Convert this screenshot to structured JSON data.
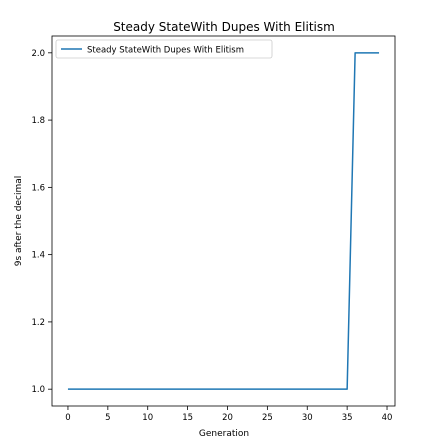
{
  "chart_data": {
    "type": "line",
    "title": "Steady StateWith Dupes With Elitism",
    "xlabel": "Generation",
    "ylabel": "9s after the decimal",
    "xlim": [
      -2,
      41
    ],
    "ylim": [
      0.95,
      2.05
    ],
    "xticks": [
      0,
      5,
      10,
      15,
      20,
      25,
      30,
      35,
      40
    ],
    "yticks": [
      1.0,
      1.2,
      1.4,
      1.6,
      1.8,
      2.0
    ],
    "ytick_labels": [
      "1.0",
      "1.2",
      "1.4",
      "1.6",
      "1.8",
      "2.0"
    ],
    "grid": false,
    "legend": "top-left",
    "series": [
      {
        "name": "Steady StateWith Dupes With Elitism",
        "color": "#1f77b4",
        "x": [
          0,
          1,
          2,
          3,
          4,
          5,
          6,
          7,
          8,
          9,
          10,
          11,
          12,
          13,
          14,
          15,
          16,
          17,
          18,
          19,
          20,
          21,
          22,
          23,
          24,
          25,
          26,
          27,
          28,
          29,
          30,
          31,
          32,
          33,
          34,
          35,
          36,
          37,
          38,
          39
        ],
        "values": [
          1,
          1,
          1,
          1,
          1,
          1,
          1,
          1,
          1,
          1,
          1,
          1,
          1,
          1,
          1,
          1,
          1,
          1,
          1,
          1,
          1,
          1,
          1,
          1,
          1,
          1,
          1,
          1,
          1,
          1,
          1,
          1,
          1,
          1,
          1,
          1,
          2,
          2,
          2,
          2
        ]
      }
    ]
  }
}
